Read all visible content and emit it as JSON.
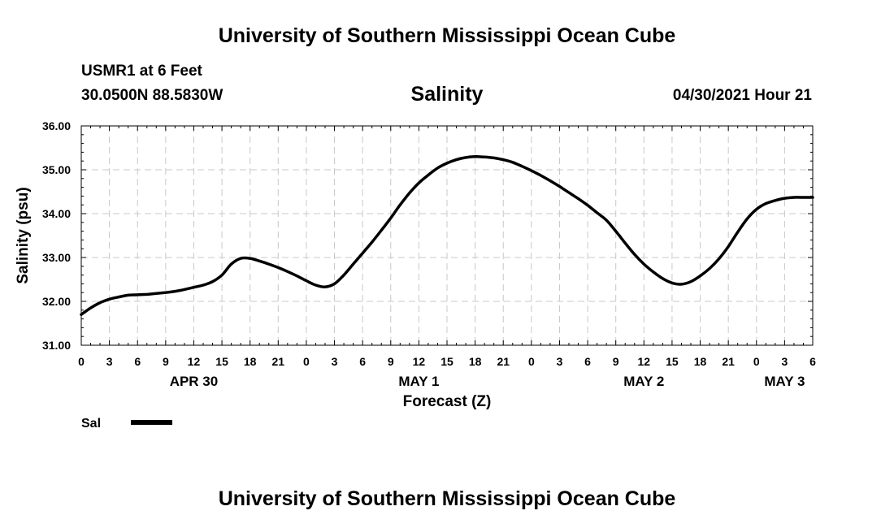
{
  "header": {
    "title": "University of Southern Mississippi Ocean Cube",
    "station": "USMR1 at 6 Feet",
    "location": "30.0500N  88.5830W",
    "datetime": "04/30/2021 Hour 21"
  },
  "footer": {
    "title": "University of Southern Mississippi Ocean Cube"
  },
  "chart_data": {
    "type": "line",
    "title": "Salinity",
    "ylabel": "Salinity (psu)",
    "xlabel": "Forecast (Z)",
    "x_unit": "hours from APR 30 00Z",
    "xlim": [
      0,
      78
    ],
    "ylim": [
      31.0,
      36.0
    ],
    "grid": true,
    "y_ticks": [
      "31.00",
      "32.00",
      "33.00",
      "34.00",
      "35.00",
      "36.00"
    ],
    "y_tick_values": [
      31,
      32,
      33,
      34,
      35,
      36
    ],
    "x_tick_hours": [
      0,
      3,
      6,
      9,
      12,
      15,
      18,
      21,
      24,
      27,
      30,
      33,
      36,
      39,
      42,
      45,
      48,
      51,
      54,
      57,
      60,
      63,
      66,
      69,
      72,
      75,
      78
    ],
    "x_tick_labels": [
      "0",
      "3",
      "6",
      "9",
      "12",
      "15",
      "18",
      "21",
      "0",
      "3",
      "6",
      "9",
      "12",
      "15",
      "18",
      "21",
      "0",
      "3",
      "6",
      "9",
      "12",
      "15",
      "18",
      "21",
      "0",
      "3",
      "6"
    ],
    "day_labels": [
      {
        "label": "APR 30",
        "hour": 12
      },
      {
        "label": "MAY 1",
        "hour": 36
      },
      {
        "label": "MAY 2",
        "hour": 60
      },
      {
        "label": "MAY 3",
        "hour": 75
      }
    ],
    "legend": {
      "position": "bottom-left",
      "entries": [
        {
          "name": "Sal",
          "color": "#000000"
        }
      ]
    },
    "series": [
      {
        "name": "Sal",
        "x": [
          0,
          1,
          2,
          3,
          4,
          5,
          6,
          7,
          8,
          9,
          10,
          11,
          12,
          13,
          14,
          15,
          16,
          17,
          18,
          19,
          20,
          21,
          22,
          23,
          24,
          25,
          26,
          27,
          28,
          29,
          30,
          31,
          32,
          33,
          34,
          35,
          36,
          37,
          38,
          39,
          40,
          41,
          42,
          43,
          44,
          45,
          46,
          47,
          48,
          49,
          50,
          51,
          52,
          53,
          54,
          55,
          56,
          57,
          58,
          59,
          60,
          61,
          62,
          63,
          64,
          65,
          66,
          67,
          68,
          69,
          70,
          71,
          72,
          73,
          74,
          75,
          76,
          77,
          78
        ],
        "values": [
          31.7,
          31.85,
          31.97,
          32.05,
          32.1,
          32.14,
          32.15,
          32.16,
          32.18,
          32.2,
          32.23,
          32.27,
          32.32,
          32.37,
          32.45,
          32.6,
          32.85,
          32.98,
          32.98,
          32.92,
          32.85,
          32.77,
          32.68,
          32.58,
          32.47,
          32.37,
          32.33,
          32.4,
          32.6,
          32.85,
          33.1,
          33.35,
          33.62,
          33.9,
          34.2,
          34.47,
          34.7,
          34.88,
          35.04,
          35.15,
          35.23,
          35.28,
          35.3,
          35.29,
          35.27,
          35.23,
          35.17,
          35.08,
          34.98,
          34.87,
          34.75,
          34.62,
          34.48,
          34.34,
          34.19,
          34.02,
          33.85,
          33.6,
          33.33,
          33.07,
          32.85,
          32.67,
          32.52,
          32.42,
          32.39,
          32.45,
          32.58,
          32.75,
          32.97,
          33.25,
          33.58,
          33.88,
          34.1,
          34.23,
          34.3,
          34.35,
          34.37,
          34.37,
          34.37
        ]
      }
    ]
  }
}
